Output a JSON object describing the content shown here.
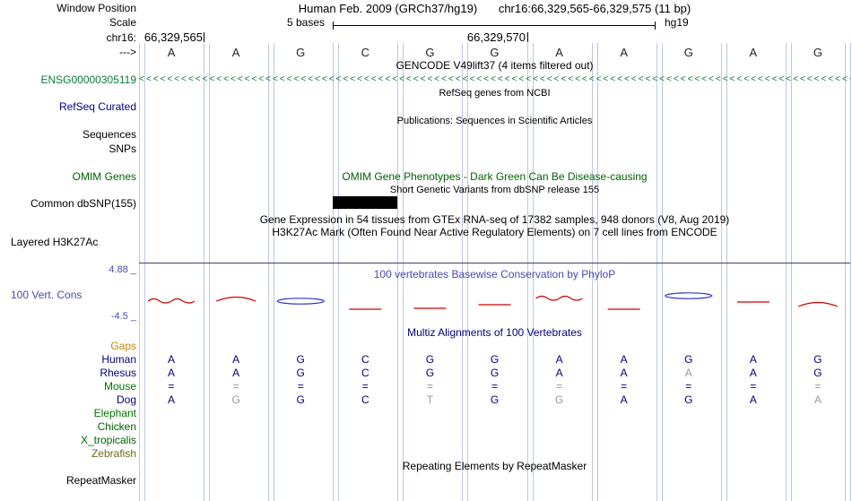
{
  "header": {
    "window_position_label": "Window Position",
    "assembly_title": "Human Feb. 2009 (GRCh37/hg19)",
    "position_text": "chr16:66,329,565-66,329,575 (11 bp)",
    "scale_label": "Scale",
    "scale_value": "5 bases",
    "genome": "hg19",
    "chrom_label": "chr16:",
    "coord_labels": [
      "66,329,565",
      "66,329,570"
    ],
    "strand_arrow": "--->",
    "bases": [
      "A",
      "A",
      "G",
      "C",
      "G",
      "G",
      "A",
      "A",
      "G",
      "A",
      "G"
    ]
  },
  "tracks": {
    "gencode": {
      "title": "GENCODE V49lift37 (4 items filtered out)",
      "gene_label": "ENSG00000305119",
      "strand_glyph": "<",
      "color": "#0b7a3a"
    },
    "refseq": {
      "title": "RefSeq genes from NCBI",
      "label": "RefSeq Curated",
      "label_color": "#00008b"
    },
    "publications": {
      "title": "Publications: Sequences in Scientific Articles"
    },
    "sequences_label": "Sequences",
    "snps_label": "SNPs",
    "omim": {
      "title": "OMIM Gene Phenotypes - Dark Green Can Be Disease-causing",
      "label": "OMIM Genes",
      "color": "#006400"
    },
    "dbsnp": {
      "title": "Short Genetic Variants from dbSNP release 155",
      "label": "Common dbSNP(155)",
      "variant_column": 4,
      "variant_color": "#000000"
    },
    "gtex_title": "Gene Expression in 54 tissues from GTEx RNA-seq of 17382 samples, 948 donors (V8, Aug 2019)",
    "h3k27ac": {
      "title": "H3K27Ac Mark (Often Found Near Active Regulatory Elements) on 7 cell lines from ENCODE",
      "label": "Layered H3K27Ac"
    },
    "conservation": {
      "title": "100 vertebrates Basewise Conservation by PhyloP",
      "label": "100 Vert. Cons",
      "max_label": "4.88 _",
      "min_label": "-4.5 _",
      "label_color": "#4a4ab4",
      "pos_color": "#cc0000",
      "neg_color": "#3333cc",
      "marks": [
        {
          "col": 1,
          "shape": "wave",
          "sign": "pos",
          "y": 18
        },
        {
          "col": 2,
          "shape": "arc",
          "sign": "pos",
          "y": 16
        },
        {
          "col": 3,
          "shape": "ellipse",
          "sign": "neg",
          "y": 18
        },
        {
          "col": 4,
          "shape": "dash",
          "sign": "pos",
          "y": 27
        },
        {
          "col": 5,
          "shape": "dash",
          "sign": "pos",
          "y": 26
        },
        {
          "col": 6,
          "shape": "dash",
          "sign": "pos",
          "y": 22
        },
        {
          "col": 7,
          "shape": "wave",
          "sign": "pos",
          "y": 15
        },
        {
          "col": 8,
          "shape": "dash",
          "sign": "pos",
          "y": 27
        },
        {
          "col": 9,
          "shape": "ellipse",
          "sign": "neg",
          "y": 12
        },
        {
          "col": 10,
          "shape": "dash",
          "sign": "pos",
          "y": 19
        },
        {
          "col": 11,
          "shape": "arc",
          "sign": "pos",
          "y": 22
        }
      ]
    },
    "multiz": {
      "title": "Multiz Alignments of 100 Vertebrates",
      "title_color": "#000080",
      "base_color": "#000080",
      "gray_color": "#999999",
      "species": [
        {
          "name": "Gaps",
          "color": "#c8860a",
          "cells": []
        },
        {
          "name": "Human",
          "color": "#000080",
          "cells": [
            {
              "t": "A"
            },
            {
              "t": "A"
            },
            {
              "t": "G"
            },
            {
              "t": "C"
            },
            {
              "t": "G"
            },
            {
              "t": "G"
            },
            {
              "t": "A"
            },
            {
              "t": "A"
            },
            {
              "t": "G"
            },
            {
              "t": "A"
            },
            {
              "t": "G"
            }
          ]
        },
        {
          "name": "Rhesus",
          "color": "#000080",
          "cells": [
            {
              "t": "A"
            },
            {
              "t": "A"
            },
            {
              "t": "G"
            },
            {
              "t": "C"
            },
            {
              "t": "G"
            },
            {
              "t": "G"
            },
            {
              "t": "A"
            },
            {
              "t": "A"
            },
            {
              "t": "A",
              "gray": true
            },
            {
              "t": "A"
            },
            {
              "t": "G"
            }
          ]
        },
        {
          "name": "Mouse",
          "color": "#007800",
          "cells": [
            {
              "t": "="
            },
            {
              "t": "=",
              "gray": true
            },
            {
              "t": "="
            },
            {
              "t": "="
            },
            {
              "t": "=",
              "gray": true
            },
            {
              "t": "="
            },
            {
              "t": "=",
              "gray": true
            },
            {
              "t": "="
            },
            {
              "t": "="
            },
            {
              "t": "="
            },
            {
              "t": "=",
              "gray": true
            }
          ]
        },
        {
          "name": "Dog",
          "color": "#000080",
          "cells": [
            {
              "t": "A"
            },
            {
              "t": "G",
              "gray": true
            },
            {
              "t": "G"
            },
            {
              "t": "C"
            },
            {
              "t": "T",
              "gray": true
            },
            {
              "t": "G"
            },
            {
              "t": "G",
              "gray": true
            },
            {
              "t": "A"
            },
            {
              "t": "G"
            },
            {
              "t": "A"
            },
            {
              "t": "A",
              "gray": true
            }
          ]
        },
        {
          "name": "Elephant",
          "color": "#007800",
          "cells": []
        },
        {
          "name": "Chicken",
          "color": "#006400",
          "cells": []
        },
        {
          "name": "X_tropicalis",
          "color": "#006400",
          "cells": []
        },
        {
          "name": "Zebrafish",
          "color": "#6b6b14",
          "cells": []
        }
      ]
    },
    "repeatmasker": {
      "title": "Repeating Elements by RepeatMasker",
      "label": "RepeatMasker"
    }
  },
  "colors": {
    "gridline": "#b9c9e6",
    "ruler_base": "#222222"
  }
}
